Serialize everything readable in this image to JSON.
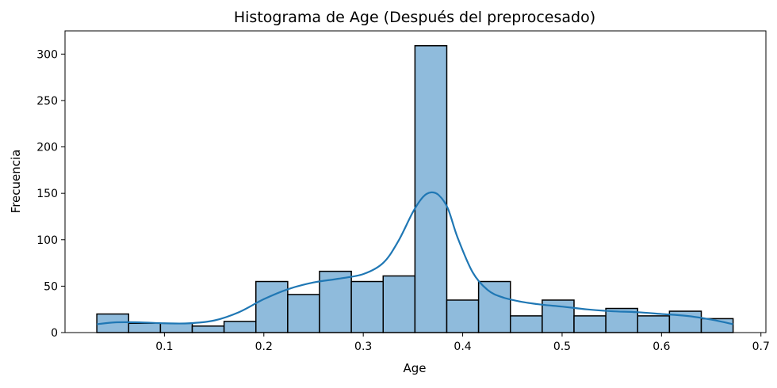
{
  "chart_data": {
    "type": "bar",
    "title": "Histograma de Age (Después del preprocesado)",
    "xlabel": "Age",
    "ylabel": "Frecuencia",
    "xlim": [
      0.0,
      0.705
    ],
    "ylim": [
      0,
      325
    ],
    "x_ticks": [
      0.1,
      0.2,
      0.3,
      0.4,
      0.5,
      0.6,
      0.7
    ],
    "x_tick_labels": [
      "0.1",
      "0.2",
      "0.3",
      "0.4",
      "0.5",
      "0.6",
      "0.7"
    ],
    "y_ticks": [
      0,
      50,
      100,
      150,
      200,
      250,
      300
    ],
    "y_tick_labels": [
      "0",
      "50",
      "100",
      "150",
      "200",
      "250",
      "300"
    ],
    "grid": false,
    "bar_color": "#8fbbdc",
    "edge_color": "#000000",
    "kde_color": "#1f77b4",
    "bins": [
      {
        "x0": 0.032,
        "x1": 0.064,
        "count": 20
      },
      {
        "x0": 0.064,
        "x1": 0.096,
        "count": 10
      },
      {
        "x0": 0.096,
        "x1": 0.128,
        "count": 10
      },
      {
        "x0": 0.128,
        "x1": 0.16,
        "count": 7
      },
      {
        "x0": 0.16,
        "x1": 0.192,
        "count": 12
      },
      {
        "x0": 0.192,
        "x1": 0.224,
        "count": 55
      },
      {
        "x0": 0.224,
        "x1": 0.256,
        "count": 41
      },
      {
        "x0": 0.256,
        "x1": 0.288,
        "count": 66
      },
      {
        "x0": 0.288,
        "x1": 0.32,
        "count": 55
      },
      {
        "x0": 0.32,
        "x1": 0.352,
        "count": 61
      },
      {
        "x0": 0.352,
        "x1": 0.384,
        "count": 309
      },
      {
        "x0": 0.384,
        "x1": 0.416,
        "count": 35
      },
      {
        "x0": 0.416,
        "x1": 0.448,
        "count": 55
      },
      {
        "x0": 0.448,
        "x1": 0.48,
        "count": 18
      },
      {
        "x0": 0.48,
        "x1": 0.512,
        "count": 35
      },
      {
        "x0": 0.512,
        "x1": 0.544,
        "count": 18
      },
      {
        "x0": 0.544,
        "x1": 0.576,
        "count": 26
      },
      {
        "x0": 0.576,
        "x1": 0.608,
        "count": 18
      },
      {
        "x0": 0.608,
        "x1": 0.64,
        "count": 23
      },
      {
        "x0": 0.64,
        "x1": 0.672,
        "count": 15
      }
    ],
    "kde": {
      "x": [
        0.032,
        0.05,
        0.075,
        0.1,
        0.125,
        0.15,
        0.175,
        0.2,
        0.225,
        0.25,
        0.275,
        0.3,
        0.32,
        0.335,
        0.35,
        0.36,
        0.368,
        0.376,
        0.385,
        0.395,
        0.41,
        0.425,
        0.44,
        0.46,
        0.48,
        0.5,
        0.525,
        0.55,
        0.575,
        0.6,
        0.625,
        0.65,
        0.672
      ],
      "y": [
        9,
        11,
        11,
        10,
        10,
        13,
        22,
        36,
        47,
        54,
        58,
        63,
        75,
        98,
        130,
        146,
        151,
        148,
        134,
        102,
        65,
        46,
        38,
        33,
        30,
        28,
        25,
        23,
        22,
        20,
        18,
        14,
        9
      ]
    }
  }
}
